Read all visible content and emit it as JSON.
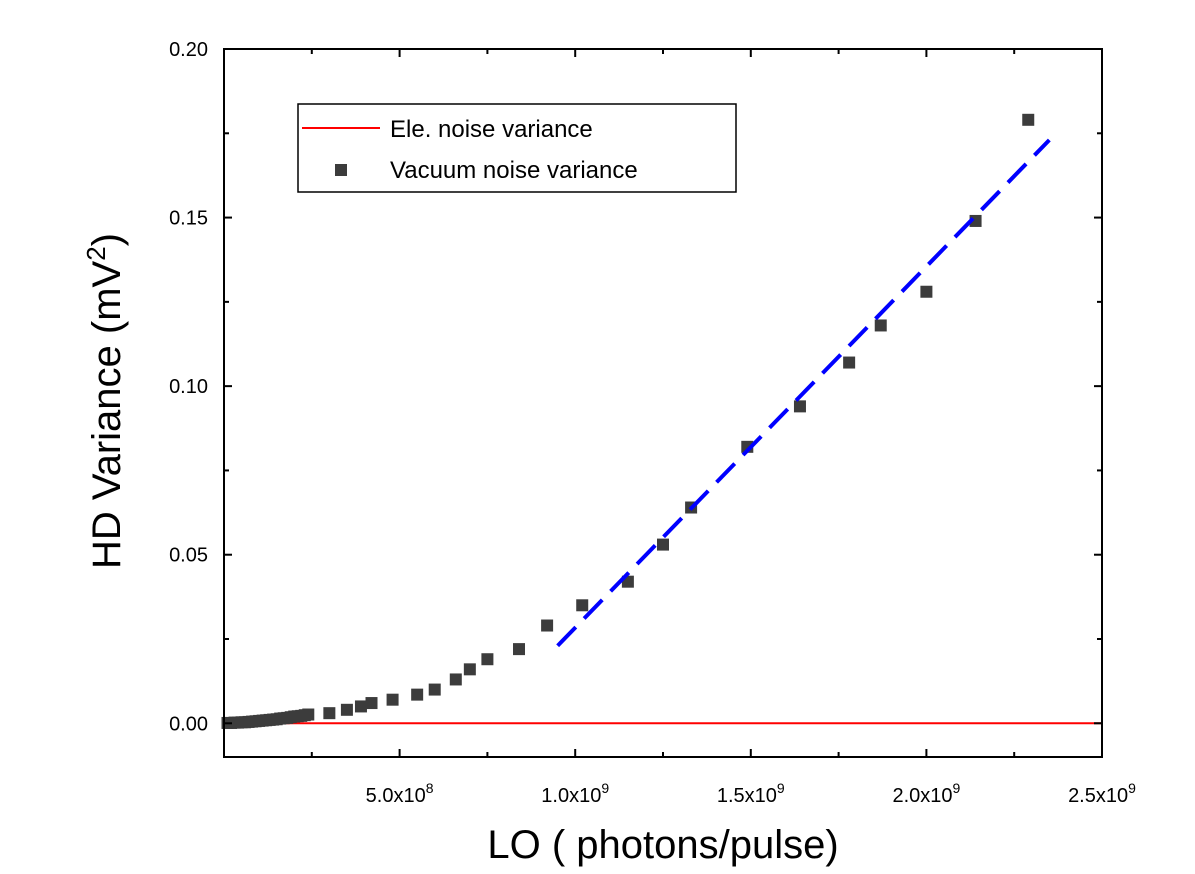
{
  "chart_data": {
    "type": "scatter",
    "xlabel": "LO ( photons/pulse)",
    "ylabel": "HD Variance (mV",
    "ylabel_sup": "2",
    "ylabel_close": ")",
    "xlim": [
      0,
      2500000000
    ],
    "ylim": [
      -0.01,
      0.2
    ],
    "grid": false,
    "legend_position": "top-left",
    "x_ticks": [
      {
        "value": 500000000,
        "base": "5.0x10",
        "exp": "8"
      },
      {
        "value": 1000000000,
        "base": "1.0x10",
        "exp": "9"
      },
      {
        "value": 1500000000,
        "base": "1.5x10",
        "exp": "9"
      },
      {
        "value": 2000000000,
        "base": "2.0x10",
        "exp": "9"
      },
      {
        "value": 2500000000,
        "base": "2.5x10",
        "exp": "9"
      }
    ],
    "y_ticks": [
      {
        "value": 0.0,
        "label": "0.00"
      },
      {
        "value": 0.05,
        "label": "0.05"
      },
      {
        "value": 0.1,
        "label": "0.10"
      },
      {
        "value": 0.15,
        "label": "0.15"
      },
      {
        "value": 0.2,
        "label": "0.20"
      }
    ],
    "series": [
      {
        "name": "Ele. noise variance",
        "kind": "line",
        "color": "#ff0000",
        "x": [
          0,
          2500000000
        ],
        "y": [
          0.0,
          0.0
        ]
      },
      {
        "name": "Vacuum noise variance",
        "kind": "scatter",
        "marker": "square",
        "color": "#3c3c3c",
        "x": [
          10000000,
          20000000,
          30000000,
          40000000,
          50000000,
          60000000,
          70000000,
          80000000,
          90000000,
          100000000,
          110000000,
          120000000,
          130000000,
          140000000,
          150000000,
          160000000,
          170000000,
          180000000,
          190000000,
          200000000,
          210000000,
          220000000,
          230000000,
          240000000,
          300000000,
          350000000,
          390000000,
          420000000,
          480000000,
          550000000,
          600000000,
          660000000,
          700000000,
          750000000,
          840000000,
          920000000,
          1020000000,
          1150000000,
          1250000000,
          1330000000,
          1490000000,
          1640000000,
          1780000000,
          1870000000,
          2000000000,
          2140000000,
          2290000000
        ],
        "y": [
          0.0001,
          0.0001,
          0.0002,
          0.0002,
          0.0003,
          0.0003,
          0.0004,
          0.0005,
          0.0006,
          0.0007,
          0.0008,
          0.0009,
          0.001,
          0.0011,
          0.0012,
          0.0014,
          0.0015,
          0.0016,
          0.0018,
          0.002,
          0.0021,
          0.0022,
          0.0024,
          0.0026,
          0.003,
          0.004,
          0.005,
          0.006,
          0.007,
          0.0085,
          0.01,
          0.013,
          0.016,
          0.019,
          0.022,
          0.029,
          0.035,
          0.042,
          0.053,
          0.064,
          0.082,
          0.094,
          0.107,
          0.118,
          0.128,
          0.149,
          0.179
        ]
      },
      {
        "kind": "line",
        "style": "dashed",
        "color": "#0000ff",
        "x": [
          950000000,
          2350000000
        ],
        "y": [
          0.023,
          0.173
        ]
      }
    ]
  }
}
